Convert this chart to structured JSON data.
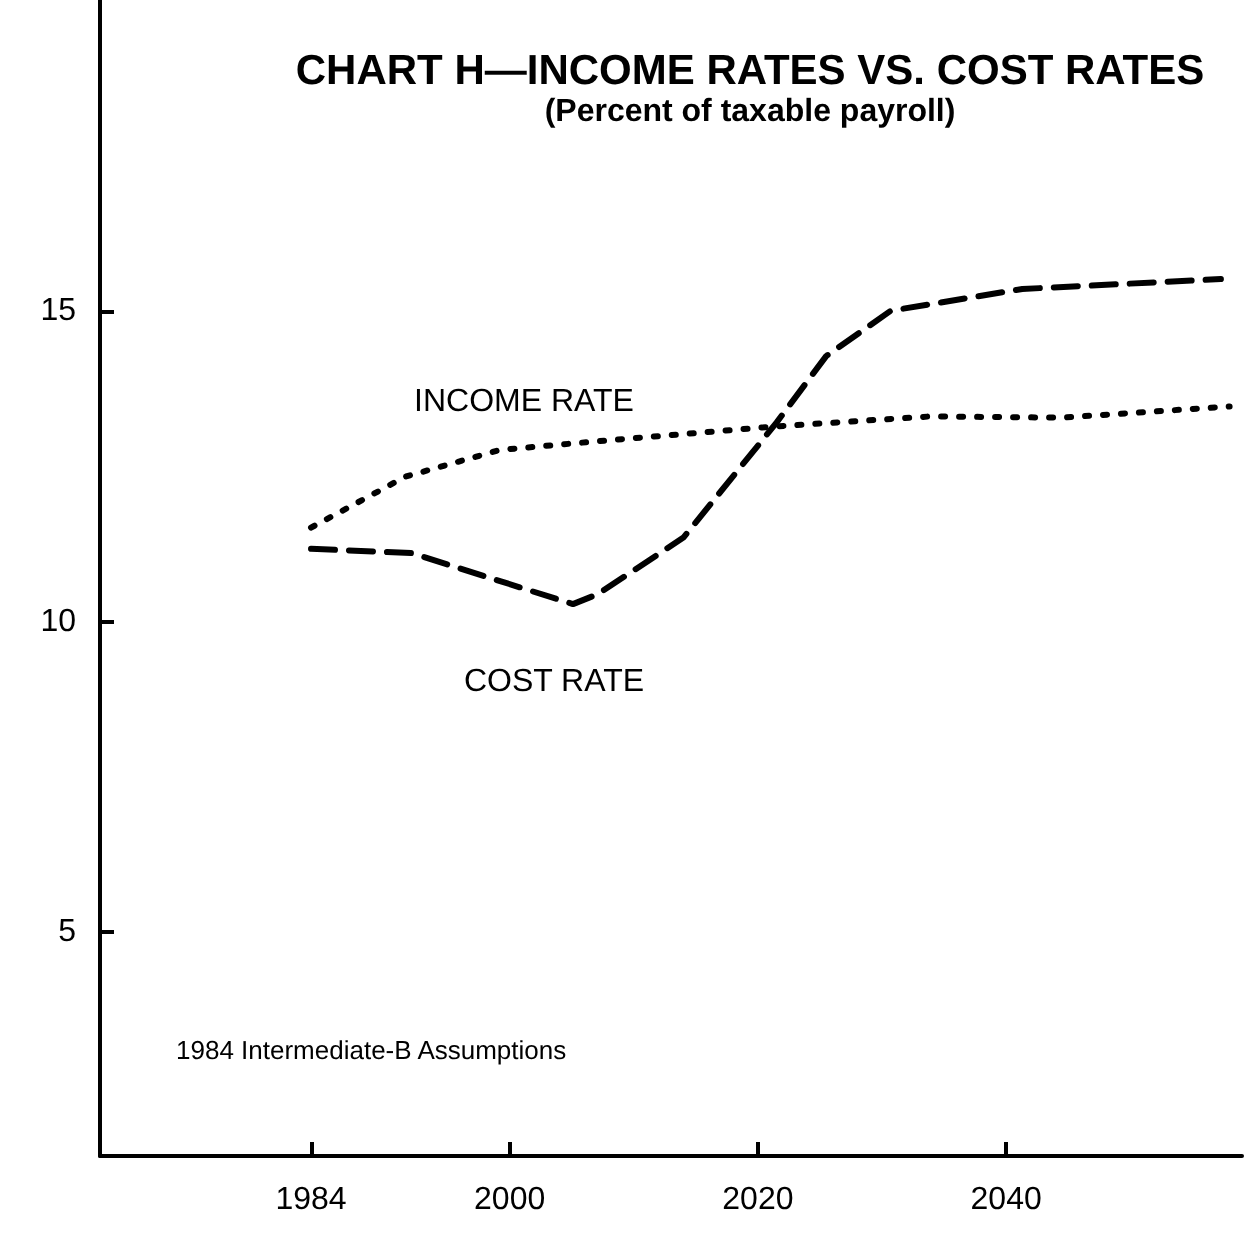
{
  "chart_data": {
    "type": "line",
    "title": "CHART H—INCOME RATES VS. COST RATES",
    "subtitle": "(Percent of taxable payroll)",
    "xlim": [
      1967,
      2059
    ],
    "xticks": [
      1984,
      2000,
      2020,
      2040
    ],
    "ylim": [
      1.4,
      20
    ],
    "yticks": [
      5,
      10,
      15
    ],
    "grid": false,
    "marker": "none",
    "series": [
      {
        "color": "#000000",
        "line_style": "dotted",
        "x": [
          1984,
          1991.6,
          1999.2,
          2008.2,
          2021.5,
          2033.9,
          2044.5,
          2058
        ],
        "values": [
          11.51,
          12.33,
          12.76,
          12.92,
          13.14,
          13.3,
          13.28,
          13.46
        ]
      },
      {
        "color": "#000000",
        "line_style": "dashed",
        "x": [
          1984,
          1992.1,
          2005.1,
          2007.1,
          2014,
          2021.5,
          2025.5,
          2030.7,
          2041.3,
          2057.3
        ],
        "values": [
          11.17,
          11.1,
          10.28,
          10.44,
          11.35,
          13.2,
          14.27,
          15.0,
          15.35,
          15.51
        ]
      }
    ],
    "annotations": [
      "INCOME RATE",
      "COST RATE",
      "1984 Intermediate-B Assumptions"
    ]
  }
}
